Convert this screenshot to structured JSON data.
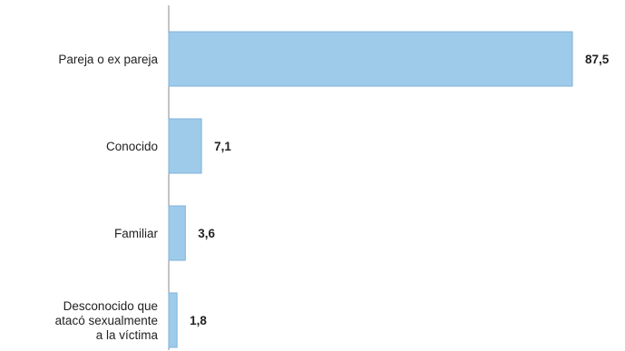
{
  "chart_data": {
    "type": "bar",
    "orientation": "horizontal",
    "title": "",
    "xlabel": "",
    "ylabel": "",
    "categories": [
      [
        "Pareja o ex pareja"
      ],
      [
        "Conocido"
      ],
      [
        "Familiar"
      ],
      [
        "Desconocido que",
        "atacó sexualmente",
        "a la víctima"
      ]
    ],
    "values": [
      87.5,
      7.1,
      3.6,
      1.8
    ],
    "value_labels": [
      "87,5",
      "7,1",
      "3,6",
      "1,8"
    ],
    "xlim": [
      0,
      87.5
    ],
    "grid": false,
    "legend": "none",
    "colors": {
      "bar_fill": "#9fcbeb",
      "bar_stroke": "#7fb2da",
      "axis": "#8a8a8a",
      "text": "#222222"
    }
  }
}
